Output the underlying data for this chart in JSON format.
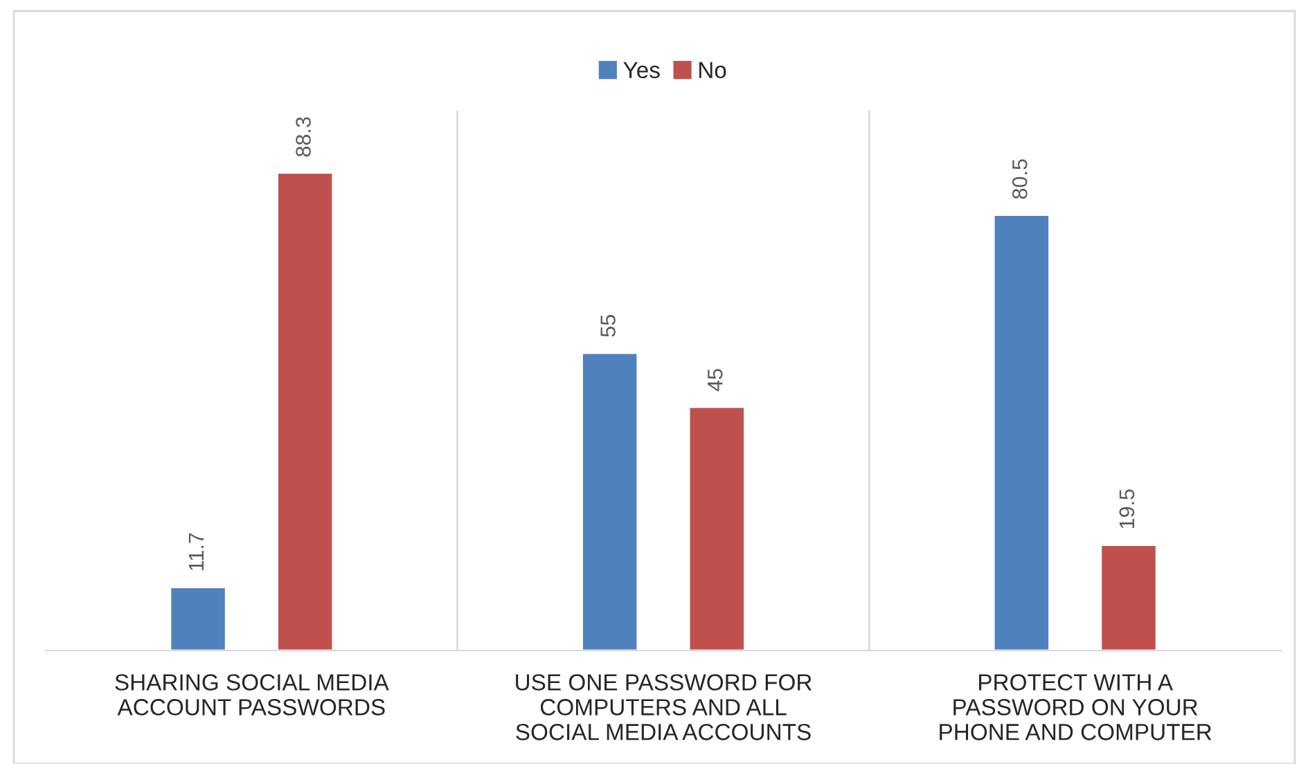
{
  "chart_data": {
    "type": "bar",
    "categories": [
      "SHARING SOCIAL MEDIA\nACCOUNT PASSWORDS",
      "USE ONE PASSWORD FOR\nCOMPUTERS AND ALL\nSOCIAL MEDIA ACCOUNTS",
      "PROTECT WITH A\nPASSWORD ON YOUR\nPHONE AND COMPUTER"
    ],
    "series": [
      {
        "name": "Yes",
        "color": "#4f81bd",
        "values": [
          11.7,
          55,
          80.5
        ]
      },
      {
        "name": "No",
        "color": "#c0504d",
        "values": [
          88.3,
          45,
          19.5
        ]
      }
    ],
    "data_labels": true,
    "legend": "top",
    "grid": "x"
  }
}
